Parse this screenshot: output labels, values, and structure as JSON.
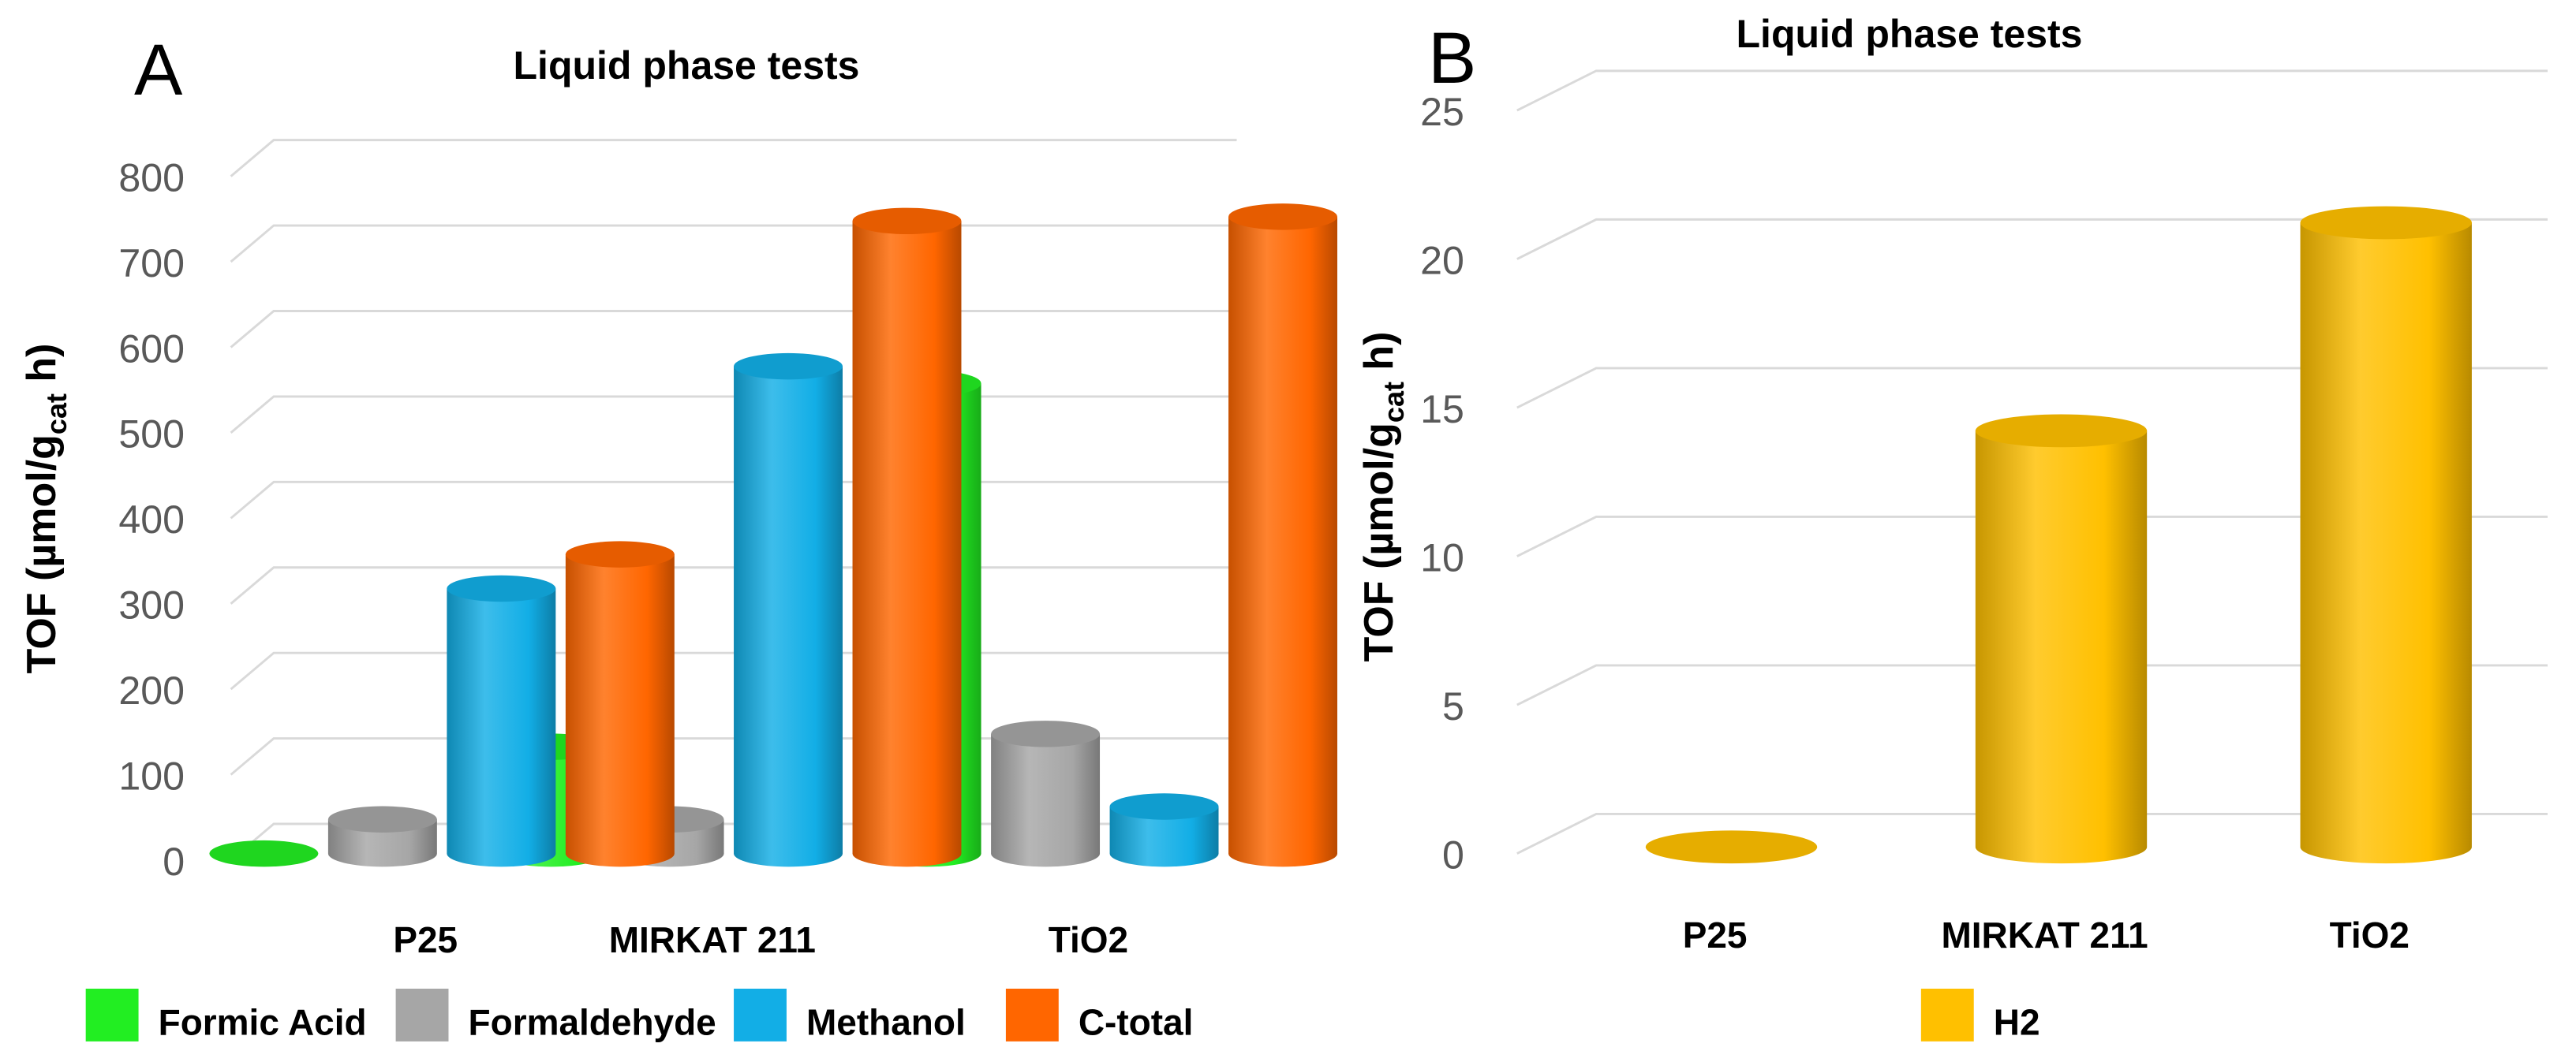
{
  "chart_data": [
    {
      "panel": "A",
      "type": "bar",
      "title": "Liquid phase tests",
      "ylabel_prefix": "TOF (µmol/g",
      "ylabel_subscript": "cat",
      "ylabel_suffix": " h)",
      "ylim": [
        0,
        800
      ],
      "yticks": [
        0,
        100,
        200,
        300,
        400,
        500,
        600,
        700,
        800
      ],
      "grid": true,
      "legend_position": "bottom",
      "categories": [
        "P25",
        "MIRKAT 211",
        "TiO2"
      ],
      "series": [
        {
          "name": "Formic Acid",
          "color": "#22ee22",
          "values": [
            0,
            125,
            550
          ]
        },
        {
          "name": "Formaldehyde",
          "color": "#a6a6a6",
          "values": [
            40,
            40,
            140
          ]
        },
        {
          "name": "Methanol",
          "color": "#12aee6",
          "values": [
            310,
            570,
            55
          ]
        },
        {
          "name": "C-total",
          "color": "#ff6600",
          "values": [
            350,
            740,
            745
          ]
        }
      ]
    },
    {
      "panel": "B",
      "type": "bar",
      "title": "Liquid phase tests",
      "ylabel_prefix": "TOF (µmol/g",
      "ylabel_subscript": "cat",
      "ylabel_suffix": " h)",
      "ylim": [
        0,
        25
      ],
      "yticks": [
        0,
        5,
        10,
        15,
        20,
        25
      ],
      "grid": true,
      "legend_position": "bottom",
      "categories": [
        "P25",
        "MIRKAT 211",
        "TiO2"
      ],
      "series": [
        {
          "name": "H2",
          "color": "#ffc000",
          "values": [
            0,
            14,
            21
          ]
        }
      ]
    }
  ]
}
